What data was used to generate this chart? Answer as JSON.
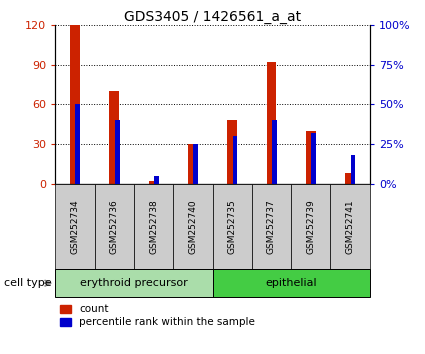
{
  "title": "GDS3405 / 1426561_a_at",
  "samples": [
    "GSM252734",
    "GSM252736",
    "GSM252738",
    "GSM252740",
    "GSM252735",
    "GSM252737",
    "GSM252739",
    "GSM252741"
  ],
  "counts": [
    120,
    70,
    2,
    30,
    48,
    92,
    40,
    8
  ],
  "percentile_ranks": [
    50,
    40,
    5,
    25,
    30,
    40,
    32,
    18
  ],
  "cell_types": [
    {
      "label": "erythroid precursor",
      "start": 0,
      "end": 4,
      "color": "#aaddaa"
    },
    {
      "label": "epithelial",
      "start": 4,
      "end": 8,
      "color": "#44cc44"
    }
  ],
  "bar_color_red": "#cc2200",
  "bar_color_blue": "#0000cc",
  "ylim_left": [
    0,
    120
  ],
  "ylim_right": [
    0,
    100
  ],
  "yticks_left": [
    0,
    30,
    60,
    90,
    120
  ],
  "ytick_labels_left": [
    "0",
    "30",
    "60",
    "90",
    "120"
  ],
  "yticks_right": [
    0,
    25,
    50,
    75,
    100
  ],
  "ytick_labels_right": [
    "0%",
    "25%",
    "50%",
    "75%",
    "100%"
  ],
  "left_tick_color": "#cc2200",
  "right_tick_color": "#0000cc",
  "cell_type_label": "cell type",
  "legend_count": "count",
  "legend_percentile": "percentile rank within the sample",
  "gray_bg": "#cccccc",
  "red_bar_width": 0.25,
  "blue_bar_width": 0.12
}
